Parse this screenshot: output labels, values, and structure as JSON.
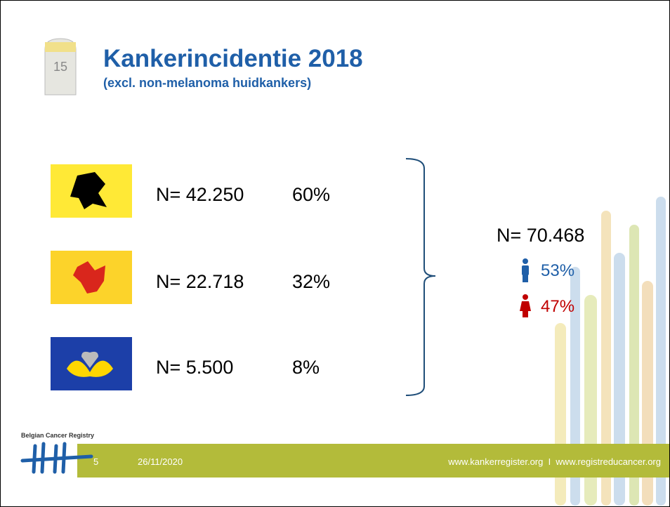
{
  "header": {
    "milestone": "15",
    "title": "Kankerincidentie 2018",
    "subtitle": "(excl. non-melanoma huidkankers)"
  },
  "regions": [
    {
      "count": "N= 42.250",
      "share": "60%"
    },
    {
      "count": "N= 22.718",
      "share": "32%"
    },
    {
      "count": "N= 5.500",
      "share": "8%"
    }
  ],
  "total": {
    "count": "N= 70.468",
    "male": "53%",
    "female": "47%"
  },
  "footer": {
    "logo": "Belgian Cancer Registry",
    "page": "5",
    "date": "26/11/2020",
    "links": "www.kankerregister.org  I  www.registreducancer.org"
  }
}
